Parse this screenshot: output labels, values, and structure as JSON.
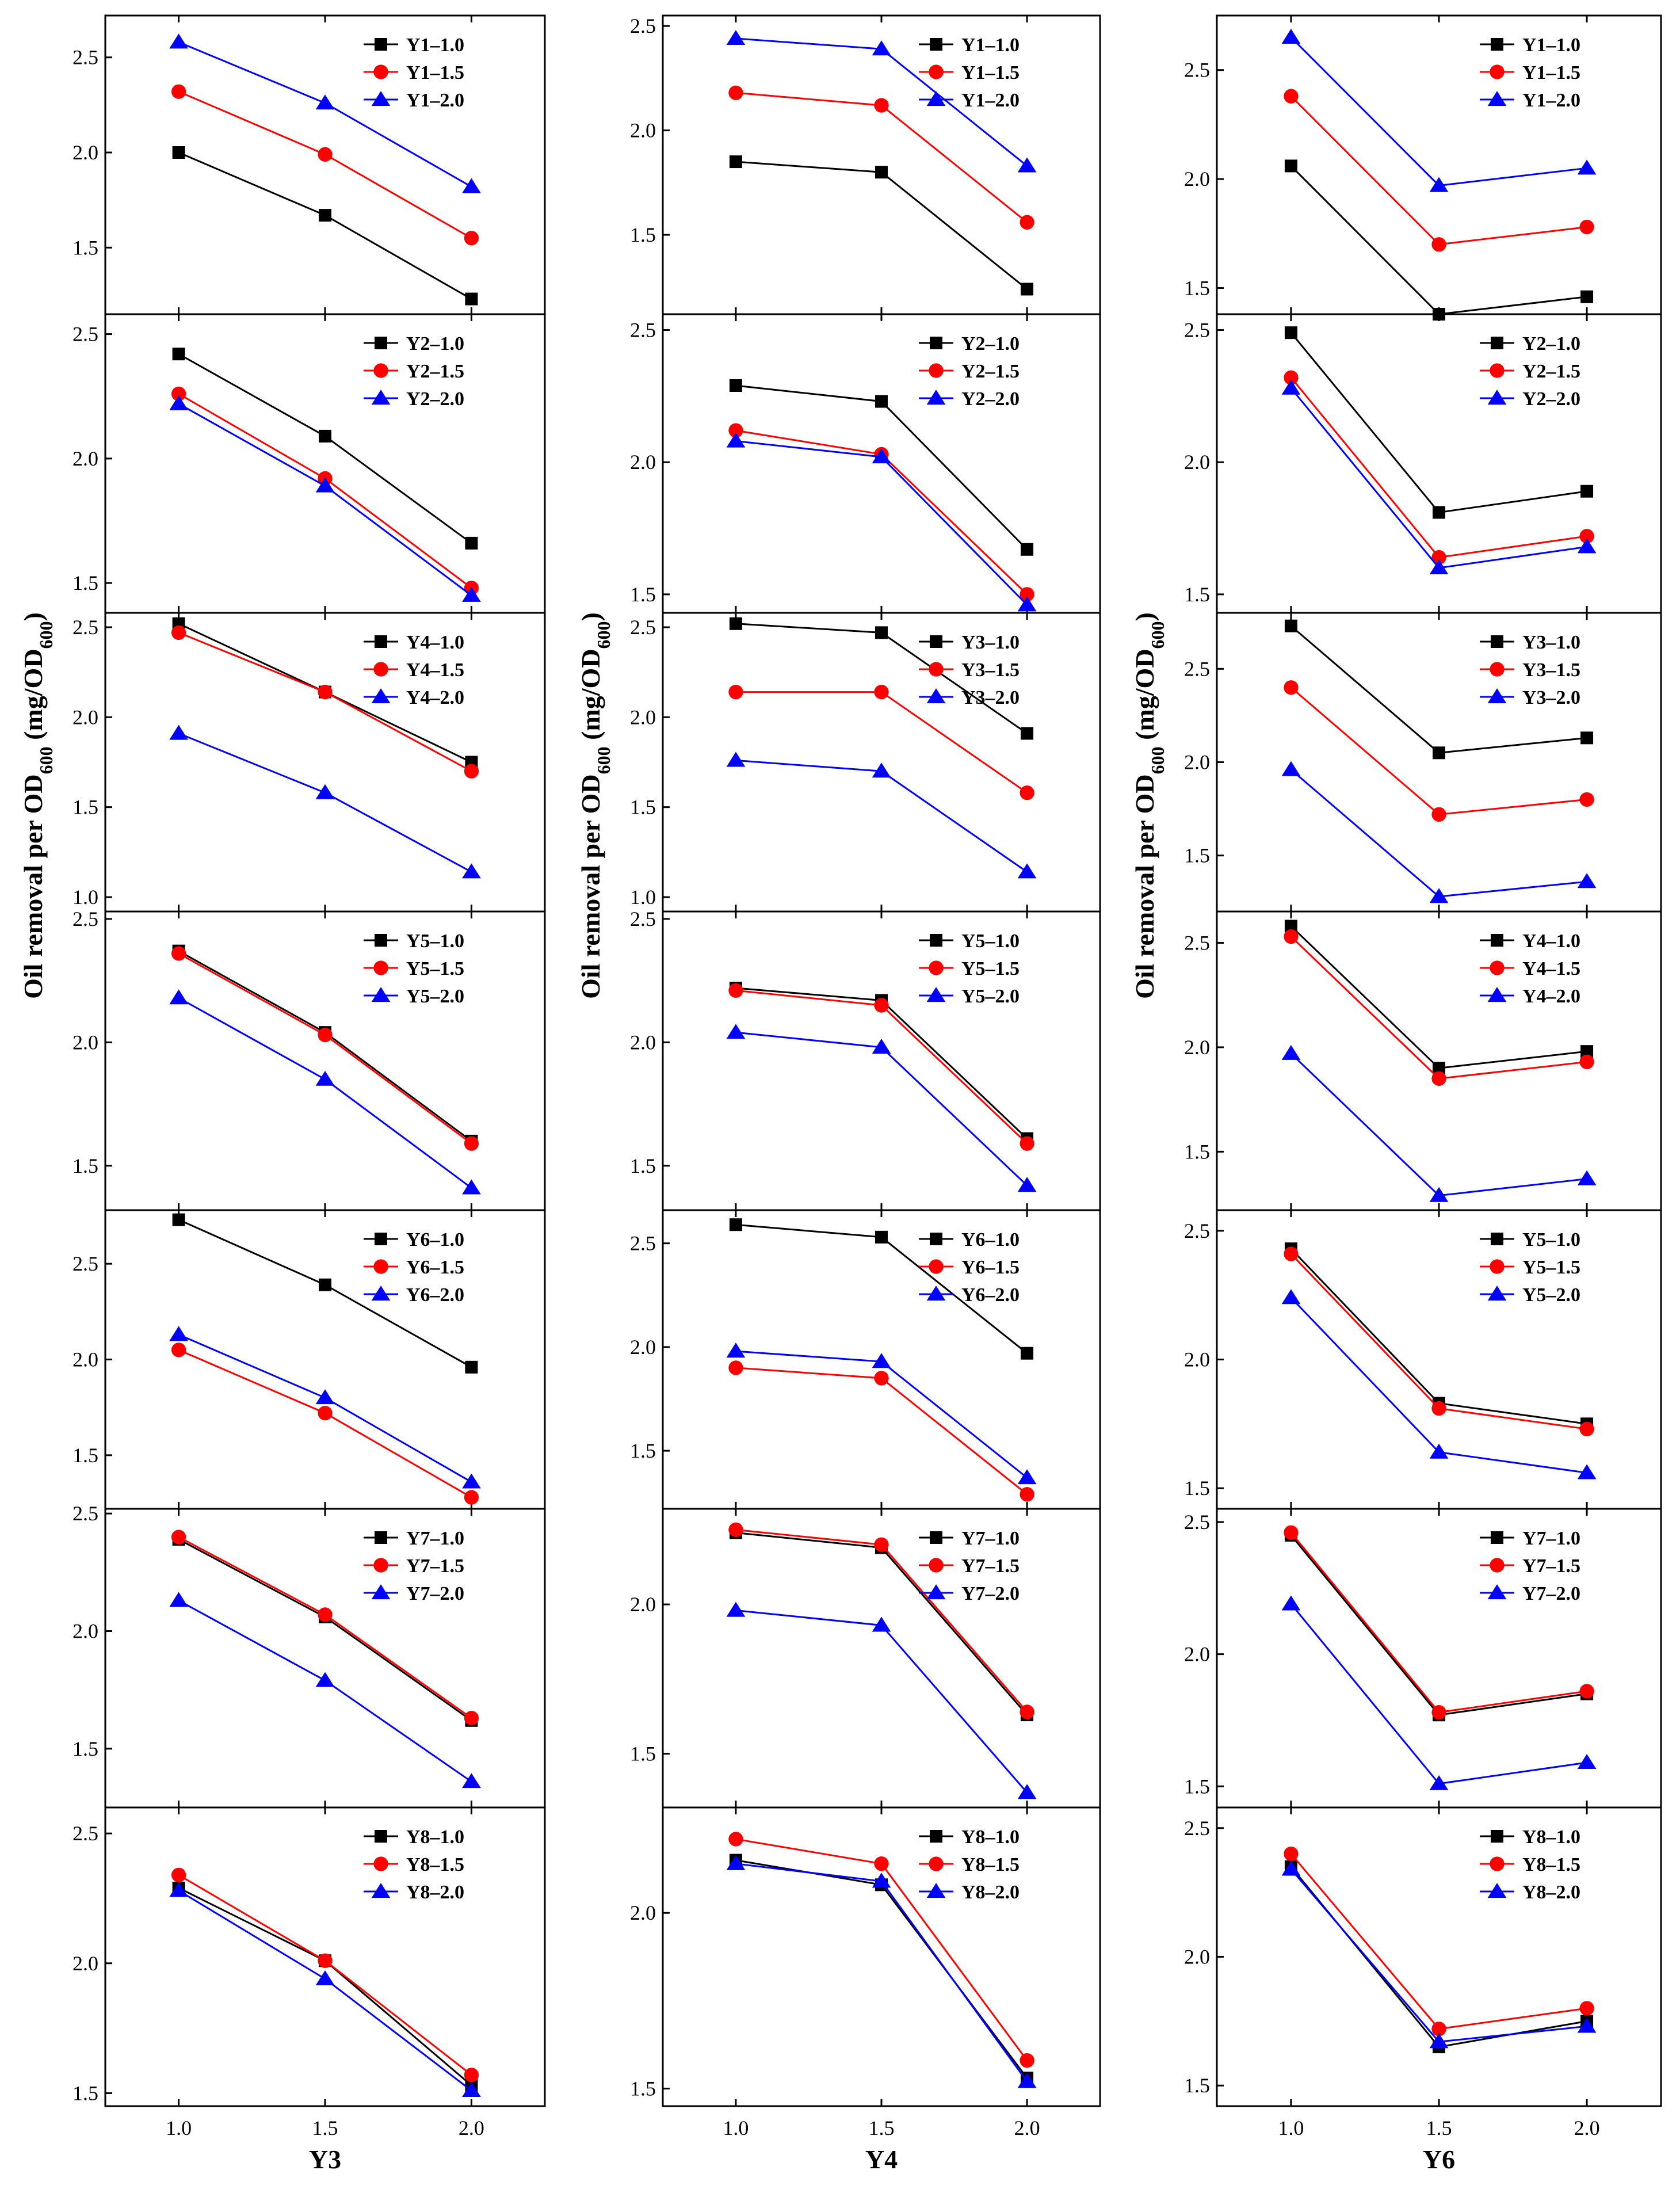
{
  "chart_data": {
    "type": "line",
    "columns": [
      {
        "xlabel": "Y3",
        "ylabel": "Oil removal per OD600 (mg/OD600)"
      },
      {
        "xlabel": "Y4",
        "ylabel": "Oil removal per OD600 (mg/OD600)"
      },
      {
        "xlabel": "Y6",
        "ylabel": "Oil removal per OD600 (mg/OD600)"
      }
    ],
    "x": [
      1.0,
      1.5,
      2.0
    ],
    "x_ticks": [
      "1.0",
      "1.5",
      "2.0"
    ],
    "series_styles": [
      {
        "color": "#000000",
        "marker": "square"
      },
      {
        "color": "#ff0000",
        "marker": "circle"
      },
      {
        "color": "#0000ff",
        "marker": "triangle"
      }
    ],
    "panels": [
      {
        "col": 0,
        "row": 0,
        "ylim": [
          1.15,
          2.72
        ],
        "yticks": [
          "1.5",
          "2.0",
          "2.5"
        ],
        "series": [
          {
            "name": "Y1–1.0",
            "values": [
              2.0,
              1.67,
              1.23
            ]
          },
          {
            "name": "Y1–1.5",
            "values": [
              2.32,
              1.99,
              1.55
            ]
          },
          {
            "name": "Y1–2.0",
            "values": [
              2.58,
              2.26,
              1.82
            ]
          }
        ]
      },
      {
        "col": 0,
        "row": 1,
        "ylim": [
          1.38,
          2.58
        ],
        "yticks": [
          "1.5",
          "2.0",
          "2.5"
        ],
        "series": [
          {
            "name": "Y2–1.0",
            "values": [
              2.42,
              2.09,
              1.66
            ]
          },
          {
            "name": "Y2–1.5",
            "values": [
              2.26,
              1.92,
              1.48
            ]
          },
          {
            "name": "Y2–2.0",
            "values": [
              2.22,
              1.89,
              1.45
            ]
          }
        ]
      },
      {
        "col": 0,
        "row": 2,
        "ylim": [
          0.92,
          2.58
        ],
        "yticks": [
          "1.0",
          "1.5",
          "2.0",
          "2.5"
        ],
        "series": [
          {
            "name": "Y4–1.0",
            "values": [
              2.52,
              2.14,
              1.75
            ]
          },
          {
            "name": "Y4–1.5",
            "values": [
              2.47,
              2.14,
              1.7
            ]
          },
          {
            "name": "Y4–2.0",
            "values": [
              1.91,
              1.58,
              1.14
            ]
          }
        ]
      },
      {
        "col": 0,
        "row": 3,
        "ylim": [
          1.32,
          2.53
        ],
        "yticks": [
          "1.5",
          "2.0",
          "2.5"
        ],
        "series": [
          {
            "name": "Y5–1.0",
            "values": [
              2.37,
              2.04,
              1.6
            ]
          },
          {
            "name": "Y5–1.5",
            "values": [
              2.36,
              2.03,
              1.59
            ]
          },
          {
            "name": "Y5–2.0",
            "values": [
              2.18,
              1.85,
              1.41
            ]
          }
        ]
      },
      {
        "col": 0,
        "row": 4,
        "ylim": [
          1.22,
          2.78
        ],
        "yticks": [
          "1.5",
          "2.0",
          "2.5"
        ],
        "series": [
          {
            "name": "Y6–1.0",
            "values": [
              2.73,
              2.39,
              1.96
            ]
          },
          {
            "name": "Y6–1.5",
            "values": [
              2.05,
              1.72,
              1.28
            ]
          },
          {
            "name": "Y6–2.0",
            "values": [
              2.13,
              1.8,
              1.36
            ]
          }
        ]
      },
      {
        "col": 0,
        "row": 5,
        "ylim": [
          1.25,
          2.52
        ],
        "yticks": [
          "1.5",
          "2.0",
          "2.5"
        ],
        "series": [
          {
            "name": "Y7–1.0",
            "values": [
              2.39,
              2.06,
              1.62
            ]
          },
          {
            "name": "Y7–1.5",
            "values": [
              2.4,
              2.07,
              1.63
            ]
          },
          {
            "name": "Y7–2.0",
            "values": [
              2.13,
              1.79,
              1.36
            ]
          }
        ]
      },
      {
        "col": 0,
        "row": 6,
        "ylim": [
          1.45,
          2.6
        ],
        "yticks": [
          "1.5",
          "2.0",
          "2.5"
        ],
        "series": [
          {
            "name": "Y8–1.0",
            "values": [
              2.29,
              2.01,
              1.53
            ]
          },
          {
            "name": "Y8–1.5",
            "values": [
              2.34,
              2.01,
              1.57
            ]
          },
          {
            "name": "Y8–2.0",
            "values": [
              2.28,
              1.94,
              1.51
            ]
          }
        ]
      },
      {
        "col": 1,
        "row": 0,
        "ylim": [
          1.12,
          2.55
        ],
        "yticks": [
          "1.5",
          "2.0",
          "2.5"
        ],
        "series": [
          {
            "name": "Y1–1.0",
            "values": [
              1.85,
              1.8,
              1.24
            ]
          },
          {
            "name": "Y1–1.5",
            "values": [
              2.18,
              2.12,
              1.56
            ]
          },
          {
            "name": "Y1–2.0",
            "values": [
              2.44,
              2.39,
              1.83
            ]
          }
        ]
      },
      {
        "col": 1,
        "row": 1,
        "ylim": [
          1.43,
          2.56
        ],
        "yticks": [
          "1.5",
          "2.0",
          "2.5"
        ],
        "series": [
          {
            "name": "Y2–1.0",
            "values": [
              2.29,
              2.23,
              1.67
            ]
          },
          {
            "name": "Y2–1.5",
            "values": [
              2.12,
              2.03,
              1.5
            ]
          },
          {
            "name": "Y2–2.0",
            "values": [
              2.08,
              2.02,
              1.46
            ]
          }
        ]
      },
      {
        "col": 1,
        "row": 2,
        "ylim": [
          0.92,
          2.58
        ],
        "yticks": [
          "1.0",
          "1.5",
          "2.0",
          "2.5"
        ],
        "series": [
          {
            "name": "Y3–1.0",
            "values": [
              2.52,
              2.47,
              1.91
            ]
          },
          {
            "name": "Y3–1.5",
            "values": [
              2.14,
              2.14,
              1.58
            ]
          },
          {
            "name": "Y3–2.0",
            "values": [
              1.76,
              1.7,
              1.14
            ]
          }
        ]
      },
      {
        "col": 1,
        "row": 3,
        "ylim": [
          1.32,
          2.53
        ],
        "yticks": [
          "1.5",
          "2.0",
          "2.5"
        ],
        "series": [
          {
            "name": "Y5–1.0",
            "values": [
              2.22,
              2.17,
              1.61
            ]
          },
          {
            "name": "Y5–1.5",
            "values": [
              2.21,
              2.15,
              1.59
            ]
          },
          {
            "name": "Y5–2.0",
            "values": [
              2.04,
              1.98,
              1.42
            ]
          }
        ]
      },
      {
        "col": 1,
        "row": 4,
        "ylim": [
          1.22,
          2.66
        ],
        "yticks": [
          "1.5",
          "2.0",
          "2.5"
        ],
        "series": [
          {
            "name": "Y6–1.0",
            "values": [
              2.59,
              2.53,
              1.97
            ]
          },
          {
            "name": "Y6–1.5",
            "values": [
              1.9,
              1.85,
              1.29
            ]
          },
          {
            "name": "Y6–2.0",
            "values": [
              1.98,
              1.93,
              1.37
            ]
          }
        ]
      },
      {
        "col": 1,
        "row": 5,
        "ylim": [
          1.32,
          2.32
        ],
        "yticks": [
          "1.5",
          "2.0"
        ],
        "series": [
          {
            "name": "Y7–1.0",
            "values": [
              2.24,
              2.19,
              1.63
            ]
          },
          {
            "name": "Y7–1.5",
            "values": [
              2.25,
              2.2,
              1.64
            ]
          },
          {
            "name": "Y7–2.0",
            "values": [
              1.98,
              1.93,
              1.37
            ]
          }
        ]
      },
      {
        "col": 1,
        "row": 6,
        "ylim": [
          1.45,
          2.3
        ],
        "yticks": [
          "1.5",
          "2.0"
        ],
        "series": [
          {
            "name": "Y8–1.0",
            "values": [
              2.15,
              2.08,
              1.53
            ]
          },
          {
            "name": "Y8–1.5",
            "values": [
              2.21,
              2.14,
              1.58
            ]
          },
          {
            "name": "Y8–2.0",
            "values": [
              2.14,
              2.09,
              1.52
            ]
          }
        ]
      },
      {
        "col": 2,
        "row": 0,
        "ylim": [
          1.38,
          2.75
        ],
        "yticks": [
          "1.5",
          "2.0",
          "2.5"
        ],
        "series": [
          {
            "name": "Y1–1.0",
            "values": [
              2.06,
              1.38,
              1.46
            ]
          },
          {
            "name": "Y1–1.5",
            "values": [
              2.38,
              1.7,
              1.78
            ]
          },
          {
            "name": "Y1–2.0",
            "values": [
              2.65,
              1.97,
              2.05
            ]
          }
        ]
      },
      {
        "col": 2,
        "row": 1,
        "ylim": [
          1.43,
          2.56
        ],
        "yticks": [
          "1.5",
          "2.0",
          "2.5"
        ],
        "series": [
          {
            "name": "Y2–1.0",
            "values": [
              2.49,
              1.81,
              1.89
            ]
          },
          {
            "name": "Y2–1.5",
            "values": [
              2.32,
              1.64,
              1.72
            ]
          },
          {
            "name": "Y2–2.0",
            "values": [
              2.28,
              1.6,
              1.68
            ]
          }
        ]
      },
      {
        "col": 2,
        "row": 2,
        "ylim": [
          1.2,
          2.8
        ],
        "yticks": [
          "1.5",
          "2.0",
          "2.5"
        ],
        "series": [
          {
            "name": "Y3–1.0",
            "values": [
              2.73,
              2.05,
              2.13
            ]
          },
          {
            "name": "Y3–1.5",
            "values": [
              2.4,
              1.72,
              1.8
            ]
          },
          {
            "name": "Y3–2.0",
            "values": [
              1.96,
              1.28,
              1.36
            ]
          }
        ]
      },
      {
        "col": 2,
        "row": 3,
        "ylim": [
          1.22,
          2.65
        ],
        "yticks": [
          "1.5",
          "2.0",
          "2.5"
        ],
        "series": [
          {
            "name": "Y4–1.0",
            "values": [
              2.58,
              1.9,
              1.98
            ]
          },
          {
            "name": "Y4–1.5",
            "values": [
              2.53,
              1.85,
              1.93
            ]
          },
          {
            "name": "Y4–2.0",
            "values": [
              1.97,
              1.29,
              1.37
            ]
          }
        ]
      },
      {
        "col": 2,
        "row": 4,
        "ylim": [
          1.42,
          2.58
        ],
        "yticks": [
          "1.5",
          "2.0",
          "2.5"
        ],
        "series": [
          {
            "name": "Y5–1.0",
            "values": [
              2.43,
              1.83,
              1.75
            ]
          },
          {
            "name": "Y5–1.5",
            "values": [
              2.41,
              1.81,
              1.73
            ]
          },
          {
            "name": "Y5–2.0",
            "values": [
              2.24,
              1.64,
              1.56
            ]
          }
        ]
      },
      {
        "col": 2,
        "row": 5,
        "ylim": [
          1.42,
          2.55
        ],
        "yticks": [
          "1.5",
          "2.0",
          "2.5"
        ],
        "series": [
          {
            "name": "Y7–1.0",
            "values": [
              2.45,
              1.77,
              1.85
            ]
          },
          {
            "name": "Y7–1.5",
            "values": [
              2.46,
              1.78,
              1.86
            ]
          },
          {
            "name": "Y7–2.0",
            "values": [
              2.19,
              1.51,
              1.59
            ]
          }
        ]
      },
      {
        "col": 2,
        "row": 6,
        "ylim": [
          1.42,
          2.58
        ],
        "yticks": [
          "1.5",
          "2.0",
          "2.5"
        ],
        "series": [
          {
            "name": "Y8–1.0",
            "values": [
              2.35,
              1.65,
              1.75
            ]
          },
          {
            "name": "Y8–1.5",
            "values": [
              2.4,
              1.72,
              1.8
            ]
          },
          {
            "name": "Y8–2.0",
            "values": [
              2.34,
              1.67,
              1.73
            ]
          }
        ]
      }
    ]
  }
}
